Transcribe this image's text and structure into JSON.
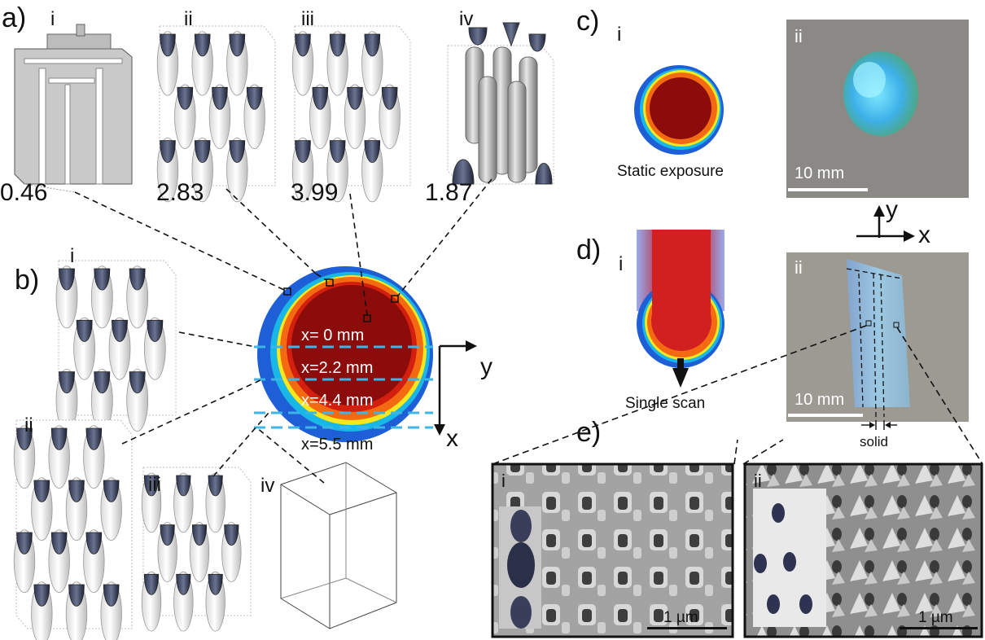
{
  "panel_a": {
    "label": "a)",
    "subpanels": [
      {
        "roman": "i",
        "value": "0.46"
      },
      {
        "roman": "ii",
        "value": "2.83"
      },
      {
        "roman": "iii",
        "value": "3.99"
      },
      {
        "roman": "iv",
        "value": "1.87"
      }
    ]
  },
  "panel_b": {
    "label": "b)",
    "subpanels": [
      "i",
      "ii",
      "iii",
      "iv"
    ]
  },
  "center_disc": {
    "x_positions": [
      "x= 0 mm",
      "x=2.2 mm",
      "x=4.4 mm",
      "x=5.5 mm"
    ],
    "axis_y": "y",
    "axis_x": "x"
  },
  "panel_c": {
    "label": "c)",
    "sub_i": "i",
    "caption": "Static exposure",
    "sub_ii": "ii",
    "scale": "10 mm"
  },
  "axes_xy": {
    "y": "y",
    "x": "x"
  },
  "panel_d": {
    "label": "d)",
    "sub_i": "i",
    "caption": "Single scan",
    "sub_ii": "ii",
    "scale": "10 mm",
    "solid": "solid"
  },
  "panel_e": {
    "label": "e)",
    "sub_i": "i",
    "scale_i": "1 µm",
    "sub_ii": "ii",
    "scale_ii": "1 µm"
  },
  "colors": {
    "heat_blue": "#1e5fd8",
    "heat_cyan": "#19b7e6",
    "heat_yellow": "#f6e81c",
    "heat_orange": "#f46a12",
    "heat_red": "#d3200e",
    "heat_core": "#8c0b0b",
    "photo_gray": "#8a8985",
    "sem_gray": "#9b9b9b"
  }
}
